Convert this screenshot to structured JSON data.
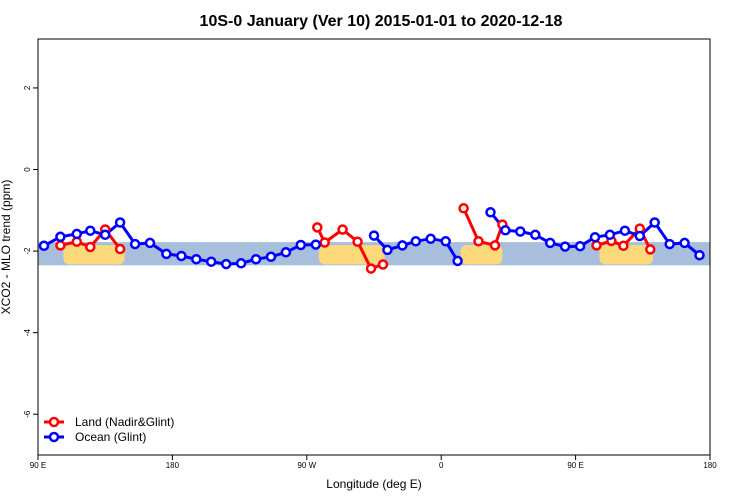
{
  "chart_data": {
    "type": "line",
    "title": "10S-0 January (Ver 10)   2015-01-01 to 2020-12-18",
    "xlabel": "Longitude (deg E)",
    "ylabel": "XCO2 - MLO trend (ppm)",
    "xlim": [
      90,
      540
    ],
    "ylim": [
      -7,
      3.2
    ],
    "xticks": [
      {
        "value": 90,
        "label": "90 E"
      },
      {
        "value": 180,
        "label": "180"
      },
      {
        "value": 270,
        "label": "90 W"
      },
      {
        "value": 360,
        "label": "0"
      },
      {
        "value": 450,
        "label": "90 E"
      },
      {
        "value": 540,
        "label": "180"
      }
    ],
    "yticks": [
      {
        "value": 2,
        "label": "2"
      },
      {
        "value": 0,
        "label": "0"
      },
      {
        "value": -2,
        "label": "-2"
      },
      {
        "value": -4,
        "label": "-4"
      },
      {
        "value": -6,
        "label": "-6"
      }
    ],
    "background_band": {
      "y_range": [
        -2.35,
        -1.78
      ],
      "ocean_color": "#a8bedd",
      "land_color": "#fcd97a"
    },
    "legend_position": "bottom-left",
    "series": [
      {
        "name": "Land (Nadir&Glint)",
        "color": "#ff0000",
        "segments": [
          [
            [
              105,
              -1.86
            ],
            [
              116,
              -1.77
            ],
            [
              125,
              -1.9
            ],
            [
              135,
              -1.47
            ],
            [
              145,
              -1.95
            ]
          ],
          [
            [
              277,
              -1.42
            ],
            [
              282,
              -1.79
            ],
            [
              294,
              -1.47
            ],
            [
              304,
              -1.77
            ],
            [
              313,
              -2.43
            ],
            [
              321,
              -2.33
            ]
          ],
          [
            [
              375,
              -0.95
            ],
            [
              385,
              -1.76
            ],
            [
              396,
              -1.86
            ],
            [
              401,
              -1.35
            ]
          ],
          [
            [
              464,
              -1.86
            ],
            [
              474,
              -1.75
            ],
            [
              482,
              -1.87
            ],
            [
              493,
              -1.45
            ],
            [
              500,
              -1.96
            ]
          ]
        ]
      },
      {
        "name": "Ocean (Glint)",
        "color": "#0000ff",
        "segments": [
          [
            [
              94,
              -1.87
            ],
            [
              105,
              -1.65
            ],
            [
              116,
              -1.58
            ],
            [
              125,
              -1.5
            ],
            [
              135,
              -1.6
            ],
            [
              145,
              -1.3
            ],
            [
              155,
              -1.83
            ],
            [
              165,
              -1.8
            ],
            [
              176,
              -2.07
            ],
            [
              186,
              -2.12
            ],
            [
              196,
              -2.2
            ],
            [
              206,
              -2.26
            ],
            [
              216,
              -2.32
            ],
            [
              226,
              -2.3
            ],
            [
              236,
              -2.2
            ],
            [
              246,
              -2.14
            ],
            [
              256,
              -2.03
            ],
            [
              266,
              -1.85
            ],
            [
              276,
              -1.84
            ]
          ],
          [
            [
              315,
              -1.62
            ],
            [
              324,
              -1.97
            ],
            [
              334,
              -1.86
            ],
            [
              343,
              -1.76
            ],
            [
              353,
              -1.7
            ],
            [
              363,
              -1.76
            ],
            [
              371,
              -2.24
            ]
          ],
          [
            [
              393,
              -1.05
            ],
            [
              403,
              -1.49
            ],
            [
              413,
              -1.52
            ],
            [
              423,
              -1.6
            ],
            [
              433,
              -1.8
            ],
            [
              443,
              -1.89
            ],
            [
              453,
              -1.88
            ],
            [
              463,
              -1.66
            ],
            [
              473,
              -1.6
            ],
            [
              483,
              -1.5
            ],
            [
              493,
              -1.63
            ],
            [
              503,
              -1.3
            ],
            [
              513,
              -1.83
            ],
            [
              523,
              -1.8
            ],
            [
              533,
              -2.1
            ]
          ]
        ]
      }
    ]
  }
}
